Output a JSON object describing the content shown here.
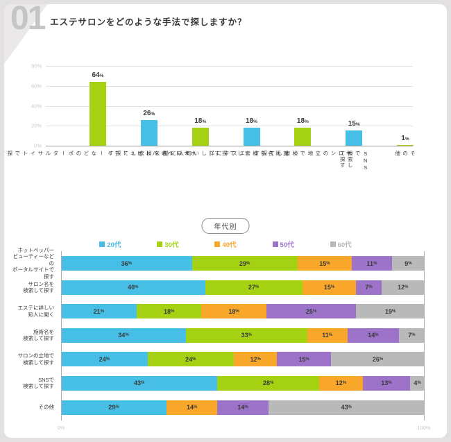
{
  "page": {
    "number": "01",
    "title": "エステサロンをどのような手法で探しますか？"
  },
  "colors": {
    "blue": "#46BEE6",
    "green": "#A4D213",
    "orange": "#F8A72B",
    "purple": "#9C73C8",
    "gray": "#B9B9BA"
  },
  "chart_data": [
    {
      "type": "bar",
      "unit": "%",
      "ylim": [
        0,
        80
      ],
      "yticks": [
        "80%",
        "60%",
        "40%",
        "20%",
        "0%"
      ],
      "grid": true,
      "categories": [
        "ホットペッパー\nビューティーなどの\nポータルサイトで探す",
        "サロン名を\n検索して探す",
        "エステに詳しい\n知人に聞く",
        "施術名を\n検索して探す",
        "サロンの立地で\n検索して探す",
        "SNSで\n検索して探す",
        "その他"
      ],
      "values": [
        64,
        26,
        18,
        18,
        18,
        15,
        1
      ],
      "bar_colors": [
        "green",
        "blue",
        "green",
        "blue",
        "green",
        "blue",
        "green"
      ]
    },
    {
      "type": "stacked-bar-horizontal",
      "badge": "年代別",
      "unit": "%",
      "xticks": [
        "0%",
        "100%"
      ],
      "legend_position": "top",
      "categories": [
        "ホットペッパー\nビューティーなどの\nポータルサイトで探す",
        "サロン名を\n検索して探す",
        "エステに詳しい\n知人に聞く",
        "施術名を\n検索して探す",
        "サロンの立地で\n検索して探す",
        "SNSで\n検索して探す",
        "その他"
      ],
      "series": [
        {
          "name": "20代",
          "color": "blue",
          "values": [
            36,
            40,
            21,
            34,
            24,
            43,
            29
          ]
        },
        {
          "name": "30代",
          "color": "green",
          "values": [
            29,
            27,
            18,
            33,
            24,
            28,
            0
          ]
        },
        {
          "name": "40代",
          "color": "orange",
          "values": [
            15,
            15,
            18,
            11,
            12,
            12,
            14
          ]
        },
        {
          "name": "50代",
          "color": "purple",
          "values": [
            11,
            7,
            25,
            14,
            15,
            13,
            14
          ]
        },
        {
          "name": "60代",
          "color": "gray",
          "values": [
            9,
            12,
            19,
            7,
            26,
            4,
            43
          ]
        }
      ]
    }
  ]
}
